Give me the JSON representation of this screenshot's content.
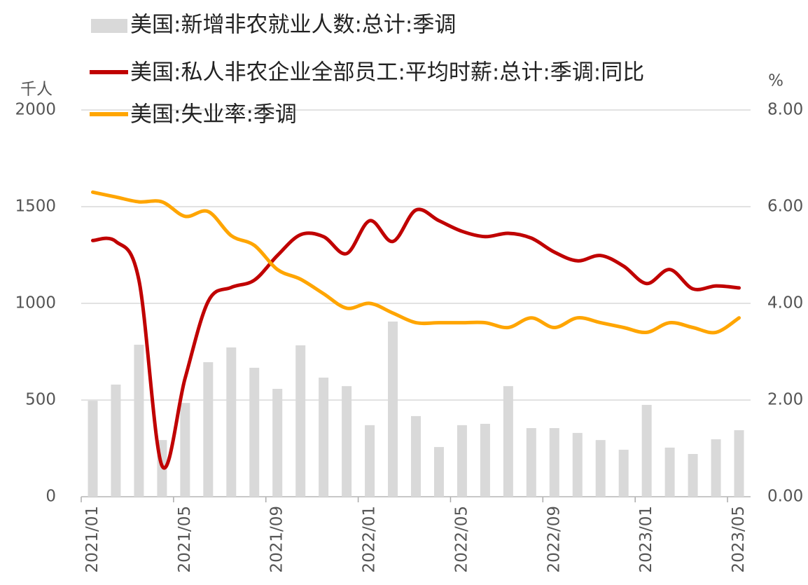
{
  "chart_data": {
    "type": "bar-line",
    "y_label": "千人",
    "y2_label": "%",
    "categories": [
      "2021/01",
      null,
      null,
      null,
      "2021/05",
      null,
      null,
      null,
      "2021/09",
      null,
      null,
      null,
      "2022/01",
      null,
      null,
      null,
      "2022/05",
      null,
      null,
      null,
      "2022/09",
      null,
      null,
      null,
      "2023/01",
      null,
      null,
      null,
      "2023/05"
    ],
    "series": [
      {
        "name": "美国:新增非农就业人数:总计:季调",
        "type": "bar",
        "color": "#d9d9d9",
        "axis": "y",
        "values": [
          496,
          580,
          786,
          293,
          485,
          696,
          772,
          667,
          558,
          783,
          616,
          572,
          370,
          906,
          417,
          257,
          370,
          377,
          572,
          355,
          355,
          330,
          293,
          243,
          475,
          254,
          221,
          297,
          344
        ]
      },
      {
        "name": "美国:私人非农企业全部员工:平均时薪:总计:季调:同比",
        "type": "line",
        "color": "#c00000",
        "axis": "y2",
        "values": [
          5.3,
          5.28,
          4.48,
          0.64,
          2.45,
          4.04,
          4.33,
          4.48,
          4.99,
          5.42,
          5.38,
          5.03,
          5.71,
          5.28,
          5.93,
          5.71,
          5.49,
          5.38,
          5.45,
          5.35,
          5.06,
          4.88,
          4.99,
          4.77,
          4.41,
          4.7,
          4.3,
          4.36,
          4.32
        ]
      },
      {
        "name": "美国:失业率:季调",
        "type": "line",
        "color": "#ffa500",
        "axis": "y2",
        "values": [
          6.3,
          6.2,
          6.1,
          6.1,
          5.8,
          5.9,
          5.4,
          5.2,
          4.7,
          4.5,
          4.2,
          3.9,
          4.0,
          3.8,
          3.6,
          3.6,
          3.6,
          3.6,
          3.5,
          3.7,
          3.5,
          3.7,
          3.6,
          3.5,
          3.4,
          3.6,
          3.5,
          3.4,
          3.7
        ]
      }
    ],
    "ylim": [
      0,
      2000
    ],
    "yticks": [
      0,
      500,
      1000,
      1500,
      2000
    ],
    "y2lim": [
      0,
      8
    ],
    "y2ticks": [
      {
        "value": 0,
        "label": "0.00"
      },
      {
        "value": 2,
        "label": "2.00"
      },
      {
        "value": 4,
        "label": "4.00"
      },
      {
        "value": 6,
        "label": "6.00"
      },
      {
        "value": 8,
        "label": "8.00"
      }
    ],
    "grid": true
  }
}
